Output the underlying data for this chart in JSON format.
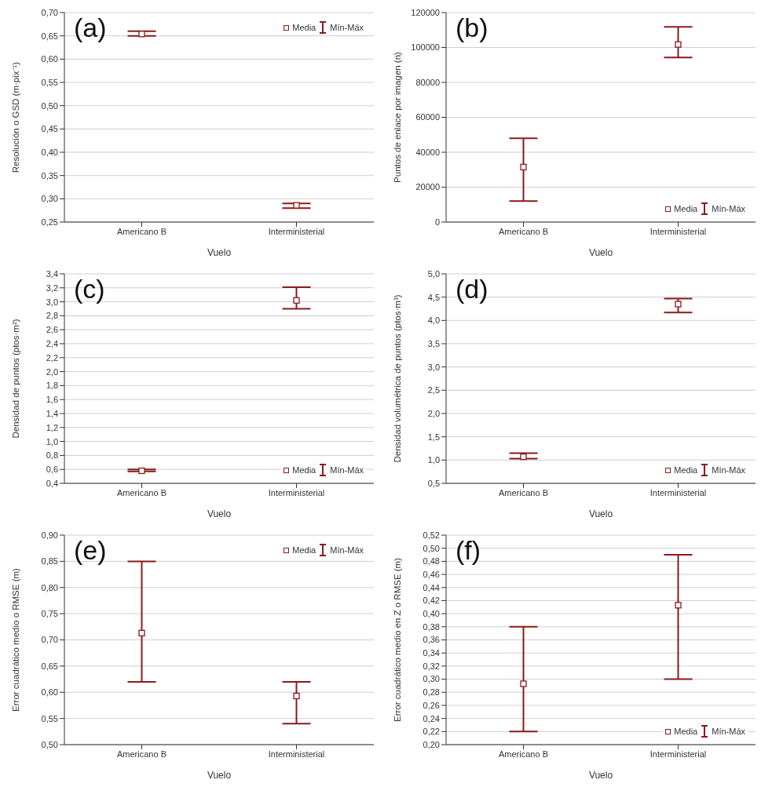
{
  "chart_data": [
    {
      "type": "scatter",
      "categories": [
        "Americano B",
        "Interministerial"
      ],
      "series": [
        {
          "name": "Media",
          "color": "#8b1a1a",
          "values": [
            0.654,
            0.286
          ],
          "errors": [
            [
              0.65,
              0.66
            ],
            [
              0.28,
              0.29
            ]
          ]
        }
      ],
      "xlabel": "Vuelo",
      "ylabel": "Resolución o GSD (m·pix⁻¹)",
      "ylim": [
        0.25,
        0.7
      ],
      "yticks": [
        {
          "value": 0.25,
          "label": "0,25"
        },
        {
          "value": 0.3,
          "label": "0,30"
        },
        {
          "value": 0.35,
          "label": "0,35"
        },
        {
          "value": 0.4,
          "label": "0,40"
        },
        {
          "value": 0.45,
          "label": "0,45"
        },
        {
          "value": 0.5,
          "label": "0,50"
        },
        {
          "value": 0.55,
          "label": "0,55"
        },
        {
          "value": 0.6,
          "label": "0,60"
        },
        {
          "value": 0.65,
          "label": "0,65"
        },
        {
          "value": 0.7,
          "label": "0,70"
        }
      ],
      "grid": "y",
      "legend": "top right",
      "marker": "square",
      "annotations": [
        "(a)",
        "Mín-Máx"
      ]
    },
    {
      "type": "scatter",
      "categories": [
        "Americano B",
        "Interministerial"
      ],
      "series": [
        {
          "name": "Media",
          "color": "#8b1a1a",
          "values": [
            31500,
            101700
          ],
          "errors": [
            [
              12000,
              48000
            ],
            [
              94300,
              111800
            ]
          ]
        }
      ],
      "xlabel": "Vuelo",
      "ylabel": "Puntos de enlace por imagen (n)",
      "ylim": [
        0,
        120000
      ],
      "yticks": [
        0,
        20000,
        40000,
        60000,
        80000,
        100000,
        120000
      ],
      "grid": "y",
      "legend": "bottom right",
      "marker": "square",
      "annotations": [
        "(b)",
        "Mín-Máx"
      ]
    },
    {
      "type": "scatter",
      "categories": [
        "Americano B",
        "Interministerial"
      ],
      "series": [
        {
          "name": "Media",
          "color": "#8b1a1a",
          "values": [
            0.58,
            3.02
          ],
          "errors": [
            [
              0.57,
              0.6
            ],
            [
              2.9,
              3.21
            ]
          ]
        }
      ],
      "xlabel": "Vuelo",
      "ylabel": "Densidad de puntos (ptos·m²)",
      "ylim": [
        0.4,
        3.4
      ],
      "yticks": [
        {
          "value": 0.4,
          "label": "0,4"
        },
        {
          "value": 0.6,
          "label": "0,6"
        },
        {
          "value": 0.8,
          "label": "0,8"
        },
        {
          "value": 1.0,
          "label": "1,0"
        },
        {
          "value": 1.2,
          "label": "1,2"
        },
        {
          "value": 1.4,
          "label": "1,4"
        },
        {
          "value": 1.6,
          "label": "1,6"
        },
        {
          "value": 1.8,
          "label": "1,8"
        },
        {
          "value": 2.0,
          "label": "2,0"
        },
        {
          "value": 2.2,
          "label": "2,2"
        },
        {
          "value": 2.4,
          "label": "2,4"
        },
        {
          "value": 2.6,
          "label": "2,6"
        },
        {
          "value": 2.8,
          "label": "2,8"
        },
        {
          "value": 3.0,
          "label": "3,0"
        },
        {
          "value": 3.2,
          "label": "3,2"
        },
        {
          "value": 3.4,
          "label": "3,4"
        }
      ],
      "grid": "y",
      "legend": "bottom right",
      "marker": "square",
      "annotations": [
        "(c)",
        "Mín-Máx"
      ]
    },
    {
      "type": "scatter",
      "categories": [
        "Americano B",
        "Interministerial"
      ],
      "series": [
        {
          "name": "Media",
          "color": "#8b1a1a",
          "values": [
            1.07,
            4.35
          ],
          "errors": [
            [
              1.03,
              1.15
            ],
            [
              4.17,
              4.47
            ]
          ]
        }
      ],
      "xlabel": "Vuelo",
      "ylabel": "Densidad volumétrica de puntos (ptos·m³)",
      "ylim": [
        0.5,
        5.0
      ],
      "yticks": [
        {
          "value": 0.5,
          "label": "0,5"
        },
        {
          "value": 1.0,
          "label": "1,0"
        },
        {
          "value": 1.5,
          "label": "1,5"
        },
        {
          "value": 2.0,
          "label": "2,0"
        },
        {
          "value": 2.5,
          "label": "2,5"
        },
        {
          "value": 3.0,
          "label": "3,0"
        },
        {
          "value": 3.5,
          "label": "3,5"
        },
        {
          "value": 4.0,
          "label": "4,0"
        },
        {
          "value": 4.5,
          "label": "4,5"
        },
        {
          "value": 5.0,
          "label": "5,0"
        }
      ],
      "grid": "y",
      "legend": "bottom right",
      "marker": "square",
      "annotations": [
        "(d)",
        "Mín-Máx"
      ]
    },
    {
      "type": "scatter",
      "categories": [
        "Americano B",
        "Interministerial"
      ],
      "series": [
        {
          "name": "Media",
          "color": "#8b1a1a",
          "values": [
            0.713,
            0.593
          ],
          "errors": [
            [
              0.62,
              0.85
            ],
            [
              0.54,
              0.62
            ]
          ]
        }
      ],
      "xlabel": "Vuelo",
      "ylabel": "Error cuadrático medio o RMSE (m)",
      "ylim": [
        0.5,
        0.9
      ],
      "yticks": [
        {
          "value": 0.5,
          "label": "0,50"
        },
        {
          "value": 0.55,
          "label": "0,55"
        },
        {
          "value": 0.6,
          "label": "0,60"
        },
        {
          "value": 0.65,
          "label": "0,65"
        },
        {
          "value": 0.7,
          "label": "0,70"
        },
        {
          "value": 0.75,
          "label": "0,75"
        },
        {
          "value": 0.8,
          "label": "0,80"
        },
        {
          "value": 0.85,
          "label": "0,85"
        },
        {
          "value": 0.9,
          "label": "0,90"
        }
      ],
      "grid": "y",
      "legend": "top right",
      "marker": "square",
      "annotations": [
        "(e)",
        "Mín-Máx"
      ]
    },
    {
      "type": "scatter",
      "categories": [
        "Americano B",
        "Interministerial"
      ],
      "series": [
        {
          "name": "Media",
          "color": "#8b1a1a",
          "values": [
            0.293,
            0.413
          ],
          "errors": [
            [
              0.22,
              0.38
            ],
            [
              0.3,
              0.49
            ]
          ]
        }
      ],
      "xlabel": "Vuelo",
      "ylabel": "Error cuadrático medio en Z o RMSE (m)",
      "ylim": [
        0.2,
        0.52
      ],
      "yticks": [
        {
          "value": 0.2,
          "label": "0,20"
        },
        {
          "value": 0.22,
          "label": "0,22"
        },
        {
          "value": 0.24,
          "label": "0,24"
        },
        {
          "value": 0.26,
          "label": "0,26"
        },
        {
          "value": 0.28,
          "label": "0,28"
        },
        {
          "value": 0.3,
          "label": "0,30"
        },
        {
          "value": 0.32,
          "label": "0,32"
        },
        {
          "value": 0.34,
          "label": "0,34"
        },
        {
          "value": 0.36,
          "label": "0,36"
        },
        {
          "value": 0.38,
          "label": "0,38"
        },
        {
          "value": 0.4,
          "label": "0,40"
        },
        {
          "value": 0.42,
          "label": "0,42"
        },
        {
          "value": 0.44,
          "label": "0,44"
        },
        {
          "value": 0.46,
          "label": "0,46"
        },
        {
          "value": 0.48,
          "label": "0,48"
        },
        {
          "value": 0.5,
          "label": "0,50"
        },
        {
          "value": 0.52,
          "label": "0,52"
        }
      ],
      "grid": "y",
      "legend": "bottom right",
      "marker": "square",
      "annotations": [
        "(f)",
        "Mín-Máx"
      ]
    }
  ]
}
